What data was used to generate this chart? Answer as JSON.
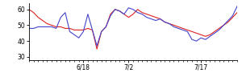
{
  "red_values": [
    60,
    58,
    55,
    53,
    51,
    50,
    49,
    49,
    48,
    48,
    47,
    47,
    47,
    48,
    47,
    35,
    46,
    49,
    57,
    60,
    59,
    57,
    55,
    57,
    60,
    58,
    57,
    56,
    55,
    54,
    52,
    51,
    50,
    49,
    48,
    47,
    46,
    45,
    44,
    43,
    44,
    46,
    48,
    50,
    52,
    55,
    58
  ],
  "blue_values": [
    48,
    48,
    49,
    49,
    49,
    49,
    48,
    55,
    58,
    46,
    44,
    42,
    46,
    57,
    47,
    37,
    46,
    49,
    56,
    60,
    59,
    57,
    61,
    60,
    58,
    57,
    55,
    54,
    53,
    54,
    52,
    51,
    49,
    48,
    47,
    46,
    41,
    40,
    42,
    41,
    43,
    45,
    47,
    50,
    53,
    56,
    62
  ],
  "x_ticks_pos": [
    12,
    22,
    38
  ],
  "x_tick_labels": [
    "6/18",
    "7/2",
    "7/17"
  ],
  "ylim": [
    28,
    64
  ],
  "yticks": [
    30,
    40,
    50,
    60
  ],
  "red_color": "#dd2222",
  "blue_color": "#4444cc",
  "bg_color": "#ffffff",
  "linewidth": 0.8
}
